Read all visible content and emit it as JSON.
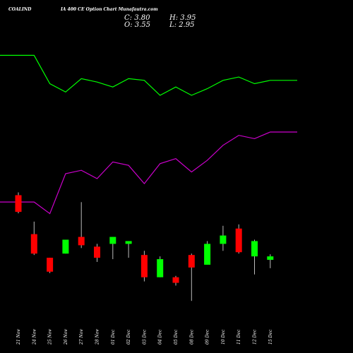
{
  "header": {
    "symbol": "COALIND",
    "subtitle": "IA 400  CE Option  Chart Munafa",
    "site": "utra.com",
    "close": "C: 3.80",
    "high": "H: 3.95",
    "open": "O: 3.55",
    "low": "L: 2.95"
  },
  "chart_data": {
    "type": "candlestick",
    "dates": [
      "21 Nov",
      "24 Nov",
      "25 Nov",
      "26 Nov",
      "27 Nov",
      "28 Nov",
      "01 Dec",
      "02 Dec",
      "03 Dec",
      "04 Dec",
      "05 Dec",
      "08 Dec",
      "09 Dec",
      "10 Dec",
      "11 Dec",
      "12 Dec",
      "15 Dec"
    ],
    "candles": [
      {
        "open": 8.2,
        "high": 8.4,
        "low": 6.9,
        "close": 7.0
      },
      {
        "open": 5.4,
        "high": 6.3,
        "low": 3.9,
        "close": 4.0
      },
      {
        "open": 3.7,
        "high": 3.7,
        "low": 2.6,
        "close": 2.7
      },
      {
        "open": 4.0,
        "high": 5.0,
        "low": 4.0,
        "close": 5.0
      },
      {
        "open": 5.2,
        "high": 7.7,
        "low": 4.4,
        "close": 4.6
      },
      {
        "open": 4.5,
        "high": 4.7,
        "low": 3.4,
        "close": 3.7
      },
      {
        "open": 4.7,
        "high": 5.2,
        "low": 3.6,
        "close": 5.2
      },
      {
        "open": 4.7,
        "high": 4.9,
        "low": 3.7,
        "close": 4.9
      },
      {
        "open": 3.9,
        "high": 4.2,
        "low": 2.0,
        "close": 2.3
      },
      {
        "open": 2.3,
        "high": 3.8,
        "low": 2.3,
        "close": 3.6
      },
      {
        "open": 2.3,
        "high": 2.4,
        "low": 1.7,
        "close": 1.9
      },
      {
        "open": 3.9,
        "high": 4.0,
        "low": 0.6,
        "close": 3.0
      },
      {
        "open": 3.2,
        "high": 4.9,
        "low": 3.2,
        "close": 4.7
      },
      {
        "open": 4.7,
        "high": 6.0,
        "low": 4.2,
        "close": 5.3
      },
      {
        "open": 5.8,
        "high": 6.1,
        "low": 4.0,
        "close": 4.1
      },
      {
        "open": 3.8,
        "high": 5.0,
        "low": 2.5,
        "close": 4.9
      },
      {
        "open": 3.55,
        "high": 3.95,
        "low": 2.95,
        "close": 3.8
      }
    ],
    "indicators": [
      {
        "color": "#00ff00",
        "values": [
          21.0,
          21.0,
          19.3,
          18.8,
          19.6,
          19.4,
          19.1,
          19.6,
          19.5,
          18.6,
          19.1,
          18.6,
          19.0,
          19.5,
          19.7,
          19.3,
          19.5
        ]
      },
      {
        "color": "#cc00cc",
        "values": [
          12.2,
          12.2,
          11.5,
          13.9,
          14.1,
          13.6,
          14.6,
          14.4,
          13.3,
          14.5,
          14.8,
          14.0,
          14.7,
          15.6,
          16.2,
          16.0,
          16.4
        ]
      }
    ],
    "colors": {
      "up": "#00ff00",
      "down": "#ff0000",
      "background": "#000000",
      "text": "#ffffff"
    },
    "grid": false
  }
}
